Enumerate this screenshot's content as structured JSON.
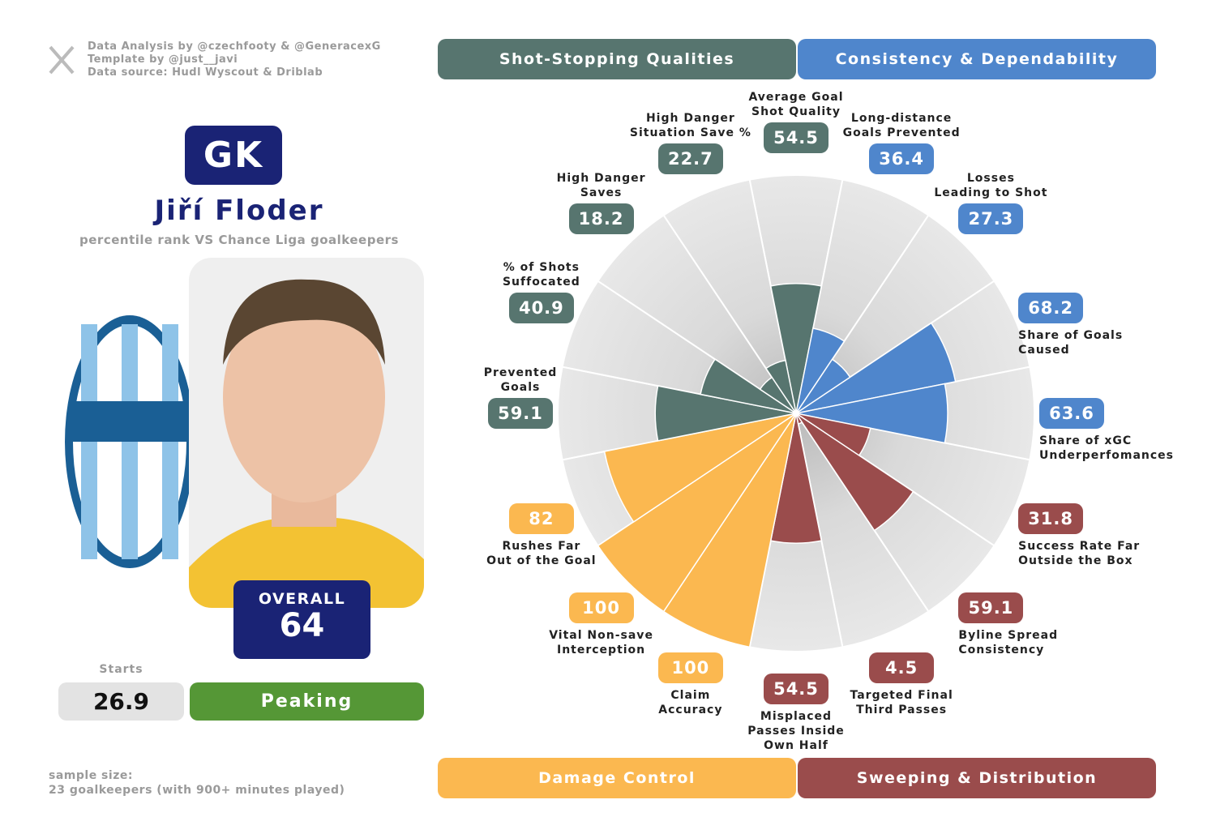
{
  "credits": [
    "Data Analysis by @czechfooty & @GeneracexG",
    "Template by @just__javi",
    "Data source: Hudl Wyscout & Driblab"
  ],
  "position": "GK",
  "player": "Jiří Floder",
  "subtitle": "percentile rank VS Chance Liga goalkeepers",
  "overall": {
    "label": "OVERALL",
    "value": 64
  },
  "starts": {
    "label": "Starts",
    "value": 26.9
  },
  "form": "Peaking",
  "sample_size": [
    "sample size:",
    "23 goalkeepers (with 900+ minutes played)"
  ],
  "chart_data": {
    "type": "pizza",
    "categories": [
      "Average Goal\nShot Quality",
      "Long-distance\nGoals Prevented",
      "Losses\nLeading to Shot",
      "Share of Goals\nCaused",
      "Share of xGC\nUnderperfomances",
      "Success Rate Far\nOutside the Box",
      "Byline Spread\nConsistency",
      "Targeted Final\nThird Passes",
      "Misplaced\nPasses Inside\nOwn Half",
      "Claim\nAccuracy",
      "Vital Non-save\nInterception",
      "Rushes Far\nOut of the Goal",
      "Prevented\nGoals",
      "% of Shots\nSuffocated",
      "High Danger\nSaves",
      "High Danger\nSituation Save %"
    ],
    "values": [
      54.5,
      36.4,
      27.3,
      68.2,
      63.6,
      31.8,
      59.1,
      4.5,
      54.5,
      100,
      100,
      82,
      59.1,
      40.9,
      18.2,
      22.7
    ],
    "colors": [
      "#57756f",
      "#4f86cc",
      "#4f86cc",
      "#4f86cc",
      "#4f86cc",
      "#9a4c4c",
      "#9a4c4c",
      "#9a4c4c",
      "#9a4c4c",
      "#fbb850",
      "#fbb850",
      "#fbb850",
      "#57756f",
      "#57756f",
      "#57756f",
      "#57756f"
    ],
    "ylim": [
      0,
      100
    ],
    "groups": [
      {
        "name": "Shot-Stopping Qualities",
        "color": "#57756f"
      },
      {
        "name": "Consistency & Dependability",
        "color": "#4f86cc"
      },
      {
        "name": "Damage Control",
        "color": "#fbb850"
      },
      {
        "name": "Sweeping & Distribution",
        "color": "#9a4c4c"
      }
    ]
  }
}
